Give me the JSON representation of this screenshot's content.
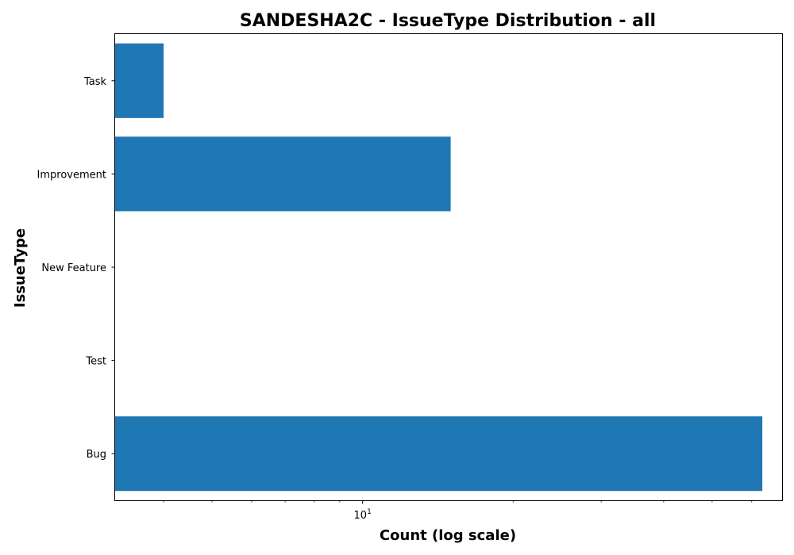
{
  "chart_data": {
    "type": "bar",
    "orientation": "horizontal",
    "title": "SANDESHA2C - IssueType Distribution - all",
    "xlabel": "Count (log scale)",
    "ylabel": "IssueType",
    "x_scale": "log",
    "xlim": [
      3.2,
      69
    ],
    "categories": [
      "Task",
      "Improvement",
      "New Feature",
      "Test",
      "Bug"
    ],
    "values": [
      4,
      15,
      3,
      3,
      63
    ],
    "x_ticks": [
      {
        "value": 10,
        "base": "10",
        "exponent": "1"
      }
    ],
    "x_minor_ticks": [
      4,
      5,
      6,
      7,
      8,
      9,
      20,
      30,
      40,
      50,
      60
    ],
    "grid": false,
    "legend": null,
    "bar_color": "#1f77b4"
  }
}
